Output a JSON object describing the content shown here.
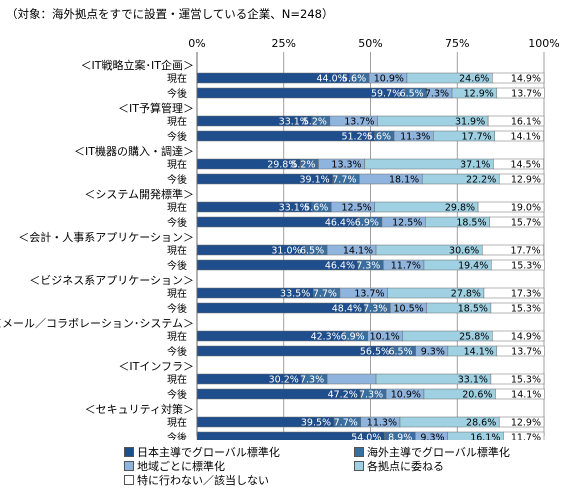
{
  "subtitle": "（対象：海外拠点をすでに設置・運営している企業、N=248）",
  "chart_data": {
    "type": "bar",
    "orientation": "horizontal",
    "stacked": true,
    "xlim": [
      0,
      100
    ],
    "x_ticks": [
      "0%",
      "25%",
      "50%",
      "75%",
      "100%"
    ],
    "groups": [
      {
        "label": "＜IT戦略立案･IT企画＞",
        "rows": [
          {
            "label": "現在",
            "values": [
              44.0,
              5.6,
              10.9,
              24.6,
              14.9
            ]
          },
          {
            "label": "今後",
            "values": [
              59.7,
              6.5,
              7.3,
              12.9,
              13.7
            ]
          }
        ]
      },
      {
        "label": "＜IT予算管理＞",
        "rows": [
          {
            "label": "現在",
            "values": [
              33.1,
              5.2,
              13.7,
              31.9,
              16.1
            ]
          },
          {
            "label": "今後",
            "values": [
              51.2,
              5.6,
              11.3,
              17.7,
              14.1
            ]
          }
        ]
      },
      {
        "label": "＜IT機器の購入・調達＞",
        "rows": [
          {
            "label": "現在",
            "values": [
              29.8,
              5.2,
              13.3,
              37.1,
              14.5
            ]
          },
          {
            "label": "今後",
            "values": [
              39.1,
              7.7,
              18.1,
              22.2,
              12.9
            ]
          }
        ]
      },
      {
        "label": "＜システム開発標準＞",
        "rows": [
          {
            "label": "現在",
            "values": [
              33.1,
              5.6,
              12.5,
              29.8,
              19.0
            ]
          },
          {
            "label": "今後",
            "values": [
              46.4,
              6.9,
              12.5,
              18.5,
              15.7
            ]
          }
        ]
      },
      {
        "label": "＜会計・人事系アプリケーション＞",
        "rows": [
          {
            "label": "現在",
            "values": [
              31.0,
              6.5,
              14.1,
              30.6,
              17.7
            ]
          },
          {
            "label": "今後",
            "values": [
              46.4,
              7.3,
              11.7,
              19.4,
              15.3
            ]
          }
        ]
      },
      {
        "label": "＜ビジネス系アプリケーション＞",
        "rows": [
          {
            "label": "現在",
            "values": [
              33.5,
              7.7,
              13.7,
              27.8,
              17.3
            ]
          },
          {
            "label": "今後",
            "values": [
              48.4,
              7.3,
              10.5,
              18.5,
              15.3
            ]
          }
        ]
      },
      {
        "label": "＜メール／コラボレーション･システム＞",
        "rows": [
          {
            "label": "現在",
            "values": [
              42.3,
              6.9,
              10.1,
              25.8,
              14.9
            ]
          },
          {
            "label": "今後",
            "values": [
              56.5,
              6.5,
              9.3,
              14.1,
              13.7
            ]
          }
        ]
      },
      {
        "label": "＜ITインフラ＞",
        "rows": [
          {
            "label": "現在",
            "values": [
              30.2,
              7.3,
              14.1,
              33.1,
              15.3
            ]
          },
          {
            "label": "今後",
            "values": [
              47.2,
              7.3,
              10.9,
              20.6,
              14.1
            ]
          }
        ]
      },
      {
        "label": "＜セキュリティ対策＞",
        "rows": [
          {
            "label": "現在",
            "values": [
              39.5,
              7.7,
              11.3,
              28.6,
              12.9
            ]
          },
          {
            "label": "今後",
            "values": [
              54.0,
              8.9,
              9.3,
              16.1,
              11.7
            ]
          }
        ]
      }
    ],
    "hidden_labels": [
      "現在|ＩＴインフラ|14.1"
    ],
    "series": [
      {
        "name": "日本主導でグローバル標準化",
        "color": "#1f4e8c",
        "label_color": "#ffffff"
      },
      {
        "name": "海外主導でグローバル標準化",
        "color": "#3a6e9e",
        "label_color": "#ffffff"
      },
      {
        "name": "地域ごとに標準化",
        "color": "#8fb4de",
        "label_color": "#000000"
      },
      {
        "name": "各拠点に委ねる",
        "color": "#9fd1e3",
        "label_color": "#000000"
      },
      {
        "name": "特に行わない／該当しない",
        "color": "#ffffff",
        "label_color": "#000000"
      }
    ],
    "legend_position": "bottom",
    "grid": true
  }
}
